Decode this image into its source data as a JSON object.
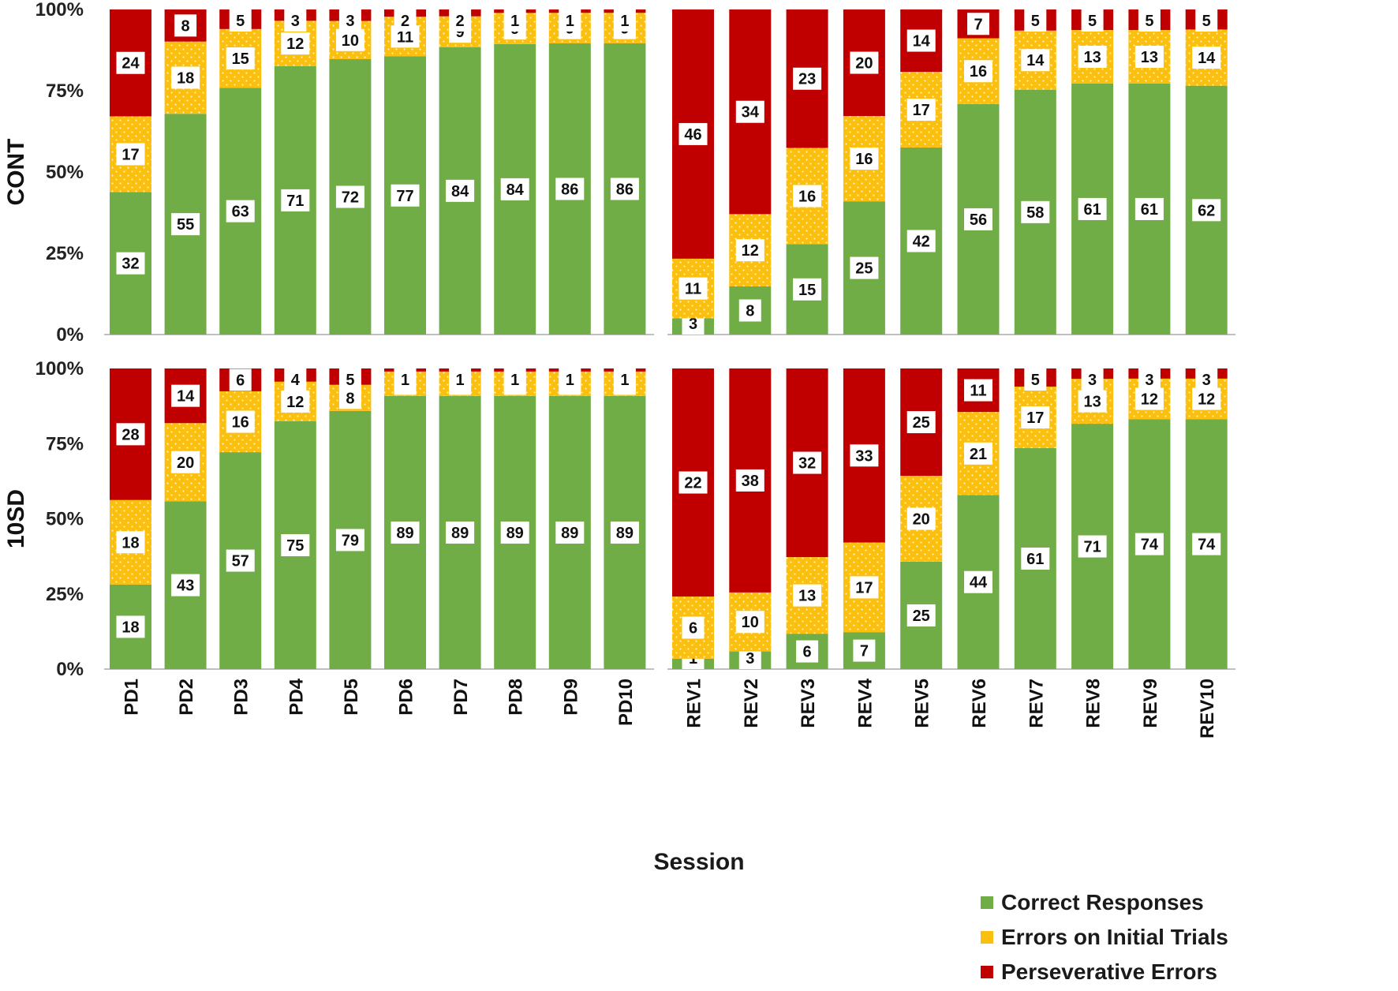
{
  "chart_data": {
    "type": "bar",
    "stacked": true,
    "percent": true,
    "xlabel": "Session",
    "yticks": [
      "0%",
      "25%",
      "50%",
      "75%",
      "100%"
    ],
    "phases": [
      "PD",
      "REV"
    ],
    "categories": {
      "PD": [
        "PD1",
        "PD2",
        "PD3",
        "PD4",
        "PD5",
        "PD6",
        "PD7",
        "PD8",
        "PD9",
        "PD10"
      ],
      "REV": [
        "REV1",
        "REV2",
        "REV3",
        "REV4",
        "REV5",
        "REV6",
        "REV7",
        "REV8",
        "REV9",
        "REV10"
      ]
    },
    "series": [
      {
        "name": "Correct Responses",
        "color": "#70ad47",
        "pattern": "none"
      },
      {
        "name": "Errors on Initial Trials",
        "color": "#fbbf0f",
        "pattern": "dots"
      },
      {
        "name": "Perseverative Errors",
        "color": "#c00000",
        "pattern": "none"
      }
    ],
    "groups": [
      {
        "name": "CONT",
        "PD": {
          "correct": [
            32,
            55,
            63,
            71,
            72,
            77,
            84,
            84,
            86,
            86
          ],
          "initial": [
            17,
            18,
            15,
            12,
            10,
            11,
            9,
            9,
            9,
            9
          ],
          "perseverative": [
            24,
            8,
            5,
            3,
            3,
            2,
            2,
            1,
            1,
            1
          ]
        },
        "REV": {
          "correct": [
            3,
            8,
            15,
            25,
            42,
            56,
            58,
            61,
            61,
            62
          ],
          "initial": [
            11,
            12,
            16,
            16,
            17,
            16,
            14,
            13,
            13,
            14
          ],
          "perseverative": [
            46,
            34,
            23,
            20,
            14,
            7,
            5,
            5,
            5,
            5
          ]
        }
      },
      {
        "name": "10SD",
        "PD": {
          "correct": [
            18,
            43,
            57,
            75,
            79,
            89,
            89,
            89,
            89,
            89
          ],
          "initial": [
            18,
            20,
            16,
            12,
            8,
            8,
            8,
            8,
            8,
            8
          ],
          "perseverative": [
            28,
            14,
            6,
            4,
            5,
            1,
            1,
            1,
            1,
            1
          ]
        },
        "REV": {
          "correct": [
            1,
            3,
            6,
            7,
            25,
            44,
            61,
            71,
            74,
            74
          ],
          "initial": [
            6,
            10,
            13,
            17,
            20,
            21,
            17,
            13,
            12,
            12
          ],
          "perseverative": [
            22,
            38,
            32,
            33,
            25,
            11,
            5,
            3,
            3,
            3
          ]
        }
      }
    ],
    "legend_position": "bottom-right"
  }
}
